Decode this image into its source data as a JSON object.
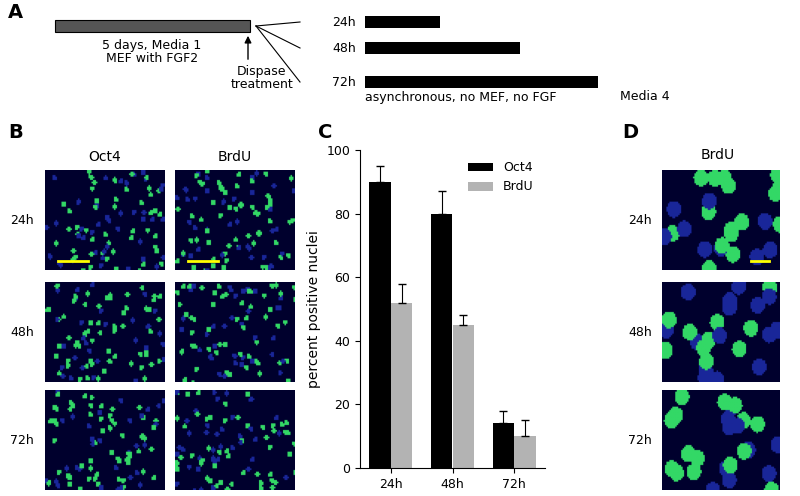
{
  "panel_labels": [
    "A",
    "B",
    "C",
    "D"
  ],
  "timeline": {
    "pretreatment": [
      "5 days, Media 1",
      "MEF with FGF2"
    ],
    "event": [
      "Dispase",
      "treatment"
    ],
    "durations": [
      "24h",
      "48h",
      "72h"
    ],
    "condition": "asynchronous, no MEF, no FGF",
    "medium": "Media 4"
  },
  "image_panels": {
    "B": {
      "columns": [
        "Oct4",
        "BrdU"
      ],
      "rows": [
        "24h",
        "48h",
        "72h"
      ]
    },
    "D": {
      "columns": [
        "BrdU"
      ],
      "rows": [
        "24h",
        "48h",
        "72h"
      ]
    }
  },
  "chart_data": {
    "type": "bar",
    "categories": [
      "24h",
      "48h",
      "72h"
    ],
    "series": [
      {
        "name": "Oct4",
        "color": "#000000",
        "values": [
          90,
          80,
          14
        ],
        "errors": [
          5,
          7,
          4
        ]
      },
      {
        "name": "BrdU",
        "color": "#b3b3b3",
        "values": [
          52,
          45,
          10
        ],
        "errors": [
          6,
          3,
          5
        ]
      }
    ],
    "y_label": "percent positive nuclei",
    "ylim": [
      0,
      100
    ],
    "yticks": [
      0,
      20,
      40,
      60,
      80,
      100
    ],
    "legend": "upper right",
    "grid": false
  }
}
